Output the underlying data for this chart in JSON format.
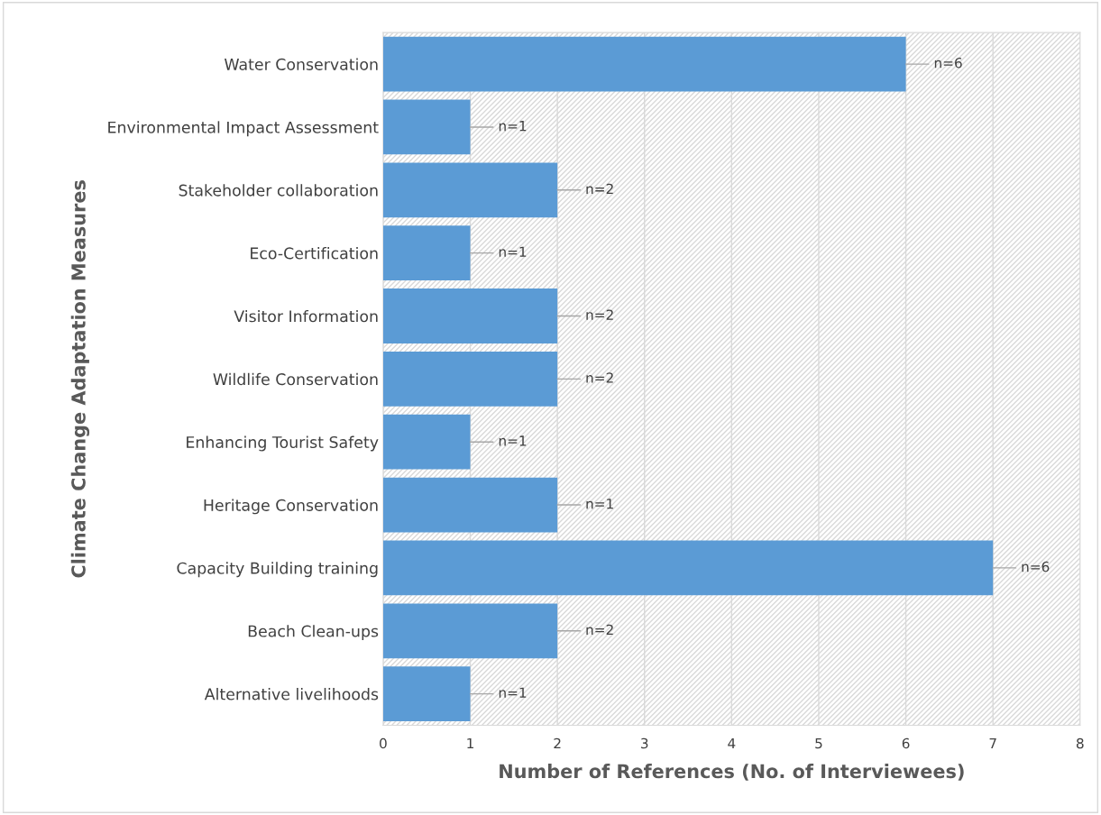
{
  "chart_data": {
    "type": "bar",
    "orientation": "horizontal",
    "xlabel": "Number of References (No. of Interviewees)",
    "ylabel": "Climate Change Adaptation Measures",
    "categories": [
      "Water Conservation",
      "Environmental Impact Assessment",
      "Stakeholder collaboration",
      "Eco-Certification",
      "Visitor Information",
      "Wildlife Conservation",
      "Enhancing Tourist Safety",
      "Heritage Conservation",
      "Capacity Building training",
      "Beach Clean-ups",
      "Alternative livelihoods"
    ],
    "values": [
      6,
      1,
      2,
      1,
      2,
      2,
      1,
      2,
      7,
      2,
      1
    ],
    "annotations": [
      {
        "text": "n=6",
        "x": 6,
        "y": "Water Conservation"
      },
      {
        "text": "n=1",
        "x": 1,
        "y": "Environmental Impact Assessment"
      },
      {
        "text": "n=2",
        "x": 2,
        "y": "Stakeholder collaboration"
      },
      {
        "text": "n=1",
        "x": 1,
        "y": "Eco-Certification"
      },
      {
        "text": "n=2",
        "x": 2,
        "y": "Visitor Information"
      },
      {
        "text": "n=2",
        "x": 2,
        "y": "Wildlife Conservation"
      },
      {
        "text": "n=1",
        "x": 1,
        "y": "Enhancing Tourist Safety"
      },
      {
        "text": "n=1",
        "x": 2,
        "y": "Heritage Conservation"
      },
      {
        "text": "n=6",
        "x": 7,
        "y": "Capacity Building training"
      },
      {
        "text": "n=2",
        "x": 2,
        "y": "Beach Clean-ups"
      },
      {
        "text": "n=1",
        "x": 1,
        "y": "Alternative livelihoods"
      }
    ],
    "color": "#5b9bd5",
    "xlim": [
      0,
      8
    ],
    "xticks": [
      0,
      1,
      2,
      3,
      4,
      5,
      6,
      7,
      8
    ],
    "grid": "x",
    "legend": false
  }
}
